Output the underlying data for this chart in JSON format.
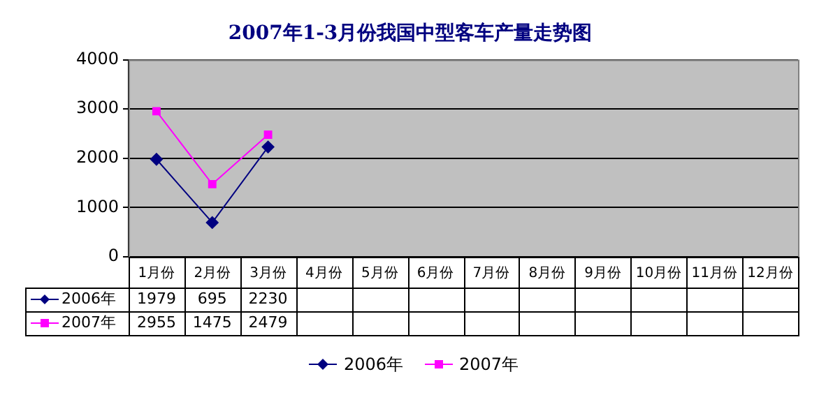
{
  "chart_data": {
    "type": "line",
    "title": "2007年1-3月份我国中型客车产量走势图",
    "categories": [
      "1月份",
      "2月份",
      "3月份",
      "4月份",
      "5月份",
      "6月份",
      "7月份",
      "8月份",
      "9月份",
      "10月份",
      "11月份",
      "12月份"
    ],
    "series": [
      {
        "name": "2006年",
        "color": "#000080",
        "marker": "diamond",
        "values": [
          1979,
          695,
          2230,
          null,
          null,
          null,
          null,
          null,
          null,
          null,
          null,
          null
        ]
      },
      {
        "name": "2007年",
        "color": "#ff00ff",
        "marker": "square",
        "values": [
          2955,
          1475,
          2479,
          null,
          null,
          null,
          null,
          null,
          null,
          null,
          null,
          null
        ]
      }
    ],
    "ylim": [
      0,
      4000
    ],
    "yticks": [
      0,
      1000,
      2000,
      3000,
      4000
    ],
    "grid": "y",
    "legend": "bottom",
    "data_labels": true
  }
}
